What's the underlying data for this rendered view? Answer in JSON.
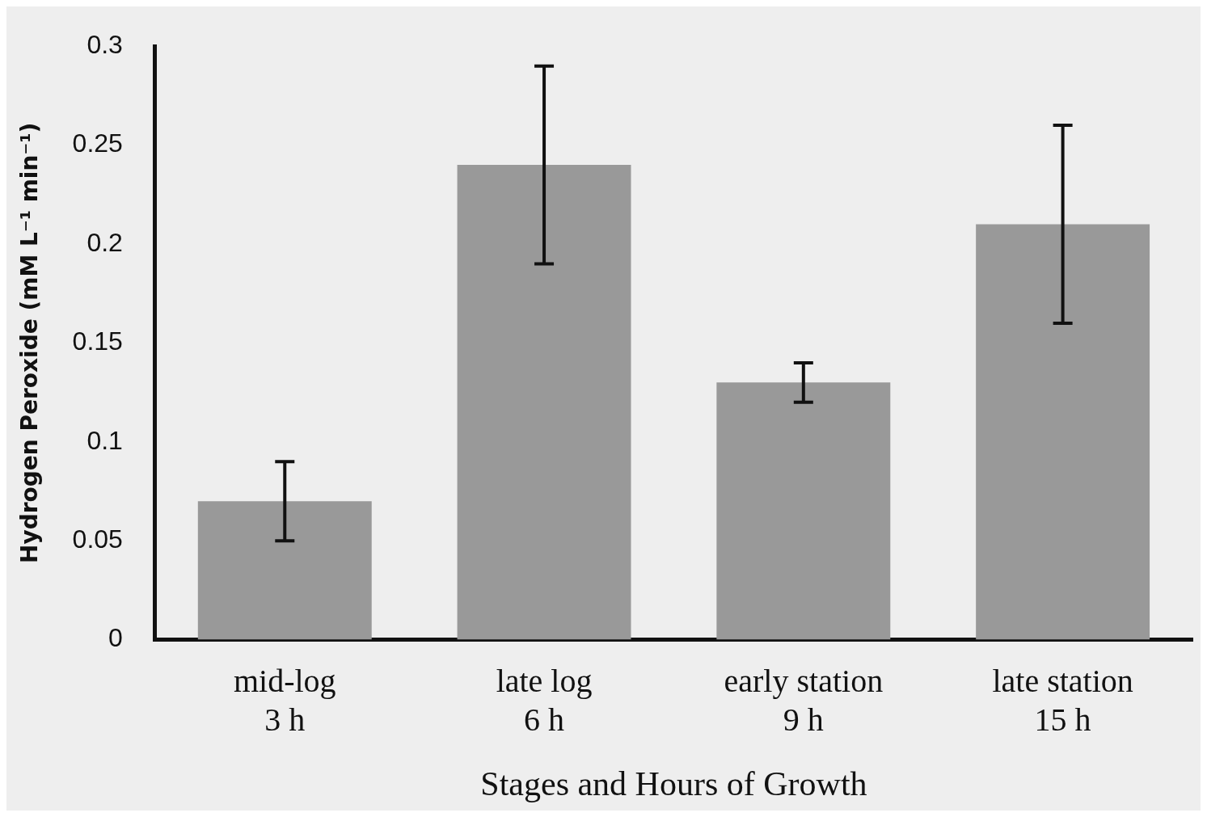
{
  "chart_data": {
    "type": "bar",
    "categories": [
      "mid-log\n3 h",
      "late log\n6 h",
      "early station\n9 h",
      "late station\n15 h"
    ],
    "values": [
      0.07,
      0.24,
      0.13,
      0.21
    ],
    "errors": [
      0.02,
      0.05,
      0.01,
      0.05
    ],
    "color": "#999999",
    "xlabel": "Stages and Hours of Growth",
    "ylabel": "Hydrogen Peroxide (mM L⁻¹ min⁻¹)",
    "ylim": [
      0,
      0.3
    ],
    "yticks": [
      0,
      0.05,
      0.1,
      0.15,
      0.2,
      0.25,
      0.3
    ],
    "grid": false,
    "legend": false
  }
}
